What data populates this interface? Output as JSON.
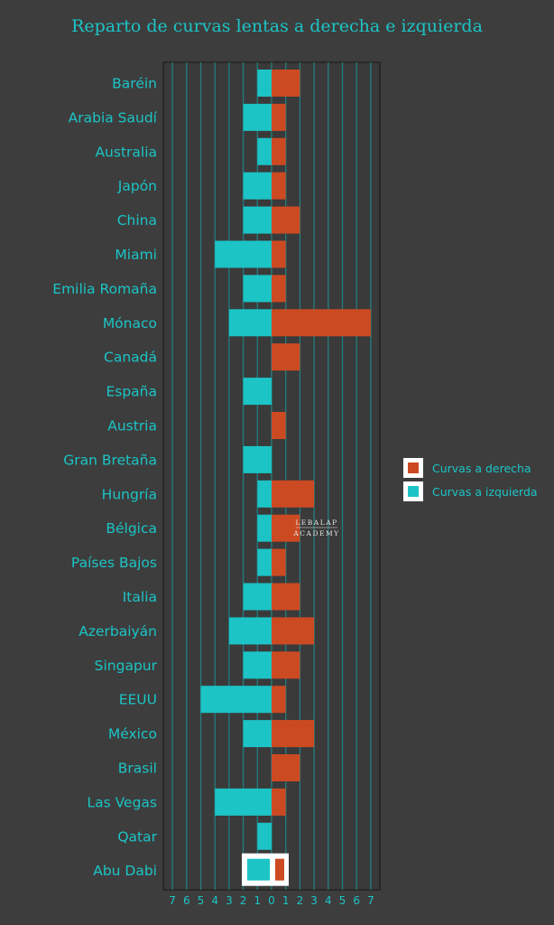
{
  "chart_data": {
    "type": "bar",
    "orientation": "horizontal-diverging",
    "title": "Reparto de curvas lentas a derecha e izquierda",
    "categories": [
      "Baréin",
      "Arabia Saudí",
      "Australia",
      "Japón",
      "China",
      "Miami",
      "Emilia Romaña",
      "Mónaco",
      "Canadá",
      "España",
      "Austria",
      "Gran Bretaña",
      "Hungría",
      "Bélgica",
      "Países Bajos",
      "Italia",
      "Azerbaiyán",
      "Singapur",
      "EEUU",
      "México",
      "Brasil",
      "Las Vegas",
      "Qatar",
      "Abu Dabi"
    ],
    "series": [
      {
        "name": "Curvas a derecha",
        "color": "#cc4a22",
        "values": [
          2,
          1,
          1,
          1,
          2,
          1,
          1,
          7,
          2,
          0,
          1,
          0,
          3,
          2,
          1,
          2,
          3,
          2,
          1,
          3,
          2,
          1,
          0,
          null
        ]
      },
      {
        "name": "Curvas a izquierda",
        "color": "#1cc4c6",
        "values": [
          1,
          2,
          1,
          2,
          2,
          4,
          2,
          3,
          0,
          2,
          0,
          2,
          1,
          1,
          1,
          2,
          3,
          2,
          5,
          2,
          0,
          4,
          1,
          null
        ]
      }
    ],
    "highlighted_category": "Abu Dabi",
    "xlim": [
      -7,
      7
    ],
    "xticks": [
      "7",
      "6",
      "5",
      "4",
      "3",
      "2",
      "1",
      "0",
      "1",
      "2",
      "3",
      "4",
      "5",
      "6",
      "7"
    ],
    "grid": true,
    "legend_position": "right",
    "watermark": [
      "LEBALAP",
      "ACADEMY"
    ]
  }
}
